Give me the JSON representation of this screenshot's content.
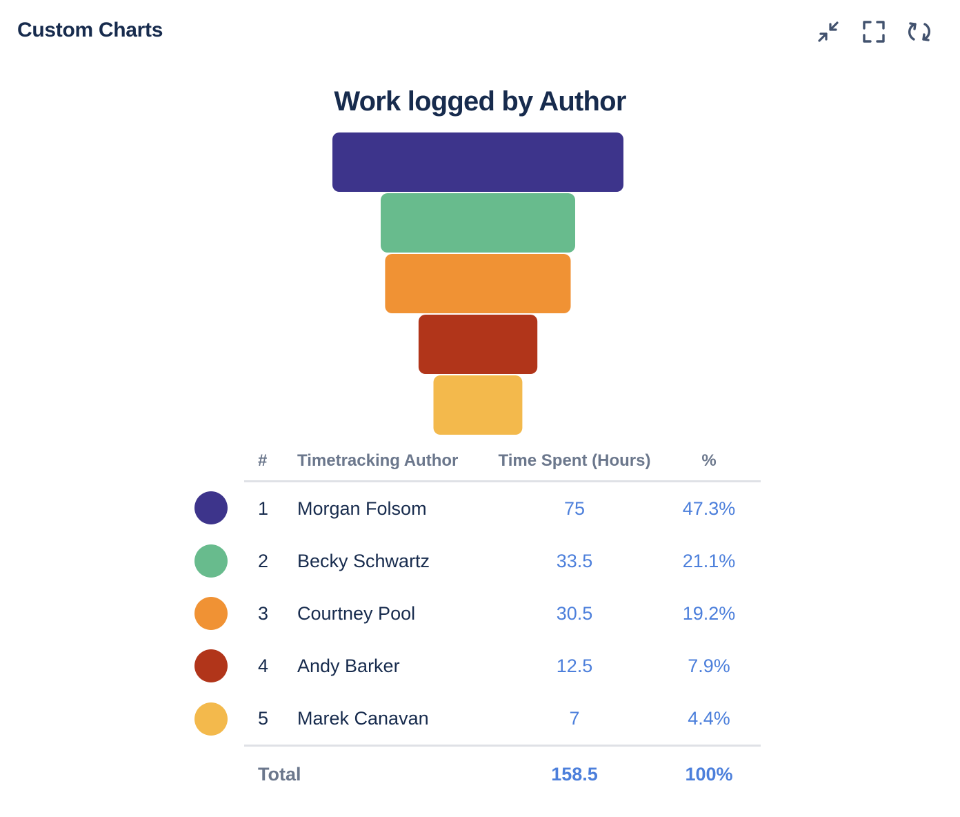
{
  "app": {
    "title": "Custom Charts"
  },
  "toolbar": {
    "actions": [
      {
        "name": "minimize",
        "icon": "minimize-arrows-icon"
      },
      {
        "name": "fullscreen",
        "icon": "fullscreen-icon"
      },
      {
        "name": "refresh",
        "icon": "refresh-icon"
      }
    ]
  },
  "chart_data": {
    "type": "funnel",
    "title": "Work logged by Author",
    "categories": [
      "Morgan Folsom",
      "Becky Schwartz",
      "Courtney Pool",
      "Andy Barker",
      "Marek Canavan"
    ],
    "values": [
      75,
      33.5,
      30.5,
      12.5,
      7
    ],
    "percentages": [
      "47.3%",
      "21.1%",
      "19.2%",
      "7.9%",
      "4.4%"
    ],
    "colors": [
      "#3d348b",
      "#68bb8d",
      "#f09234",
      "#b1351a",
      "#f3b94c"
    ],
    "legend": "table-below"
  },
  "table": {
    "headers": {
      "rank": "#",
      "author": "Timetracking Author",
      "time": "Time Spent (Hours)",
      "pct": "%"
    },
    "rows": [
      {
        "rank": "1",
        "author": "Morgan Folsom",
        "time": "75",
        "pct": "47.3%",
        "color": "#3d348b"
      },
      {
        "rank": "2",
        "author": "Becky Schwartz",
        "time": "33.5",
        "pct": "21.1%",
        "color": "#68bb8d"
      },
      {
        "rank": "3",
        "author": "Courtney Pool",
        "time": "30.5",
        "pct": "19.2%",
        "color": "#f09234"
      },
      {
        "rank": "4",
        "author": "Andy Barker",
        "time": "12.5",
        "pct": "7.9%",
        "color": "#b1351a"
      },
      {
        "rank": "5",
        "author": "Marek Canavan",
        "time": "7",
        "pct": "4.4%",
        "color": "#f3b94c"
      }
    ],
    "total": {
      "label": "Total",
      "time": "158.5",
      "pct": "100%"
    }
  }
}
